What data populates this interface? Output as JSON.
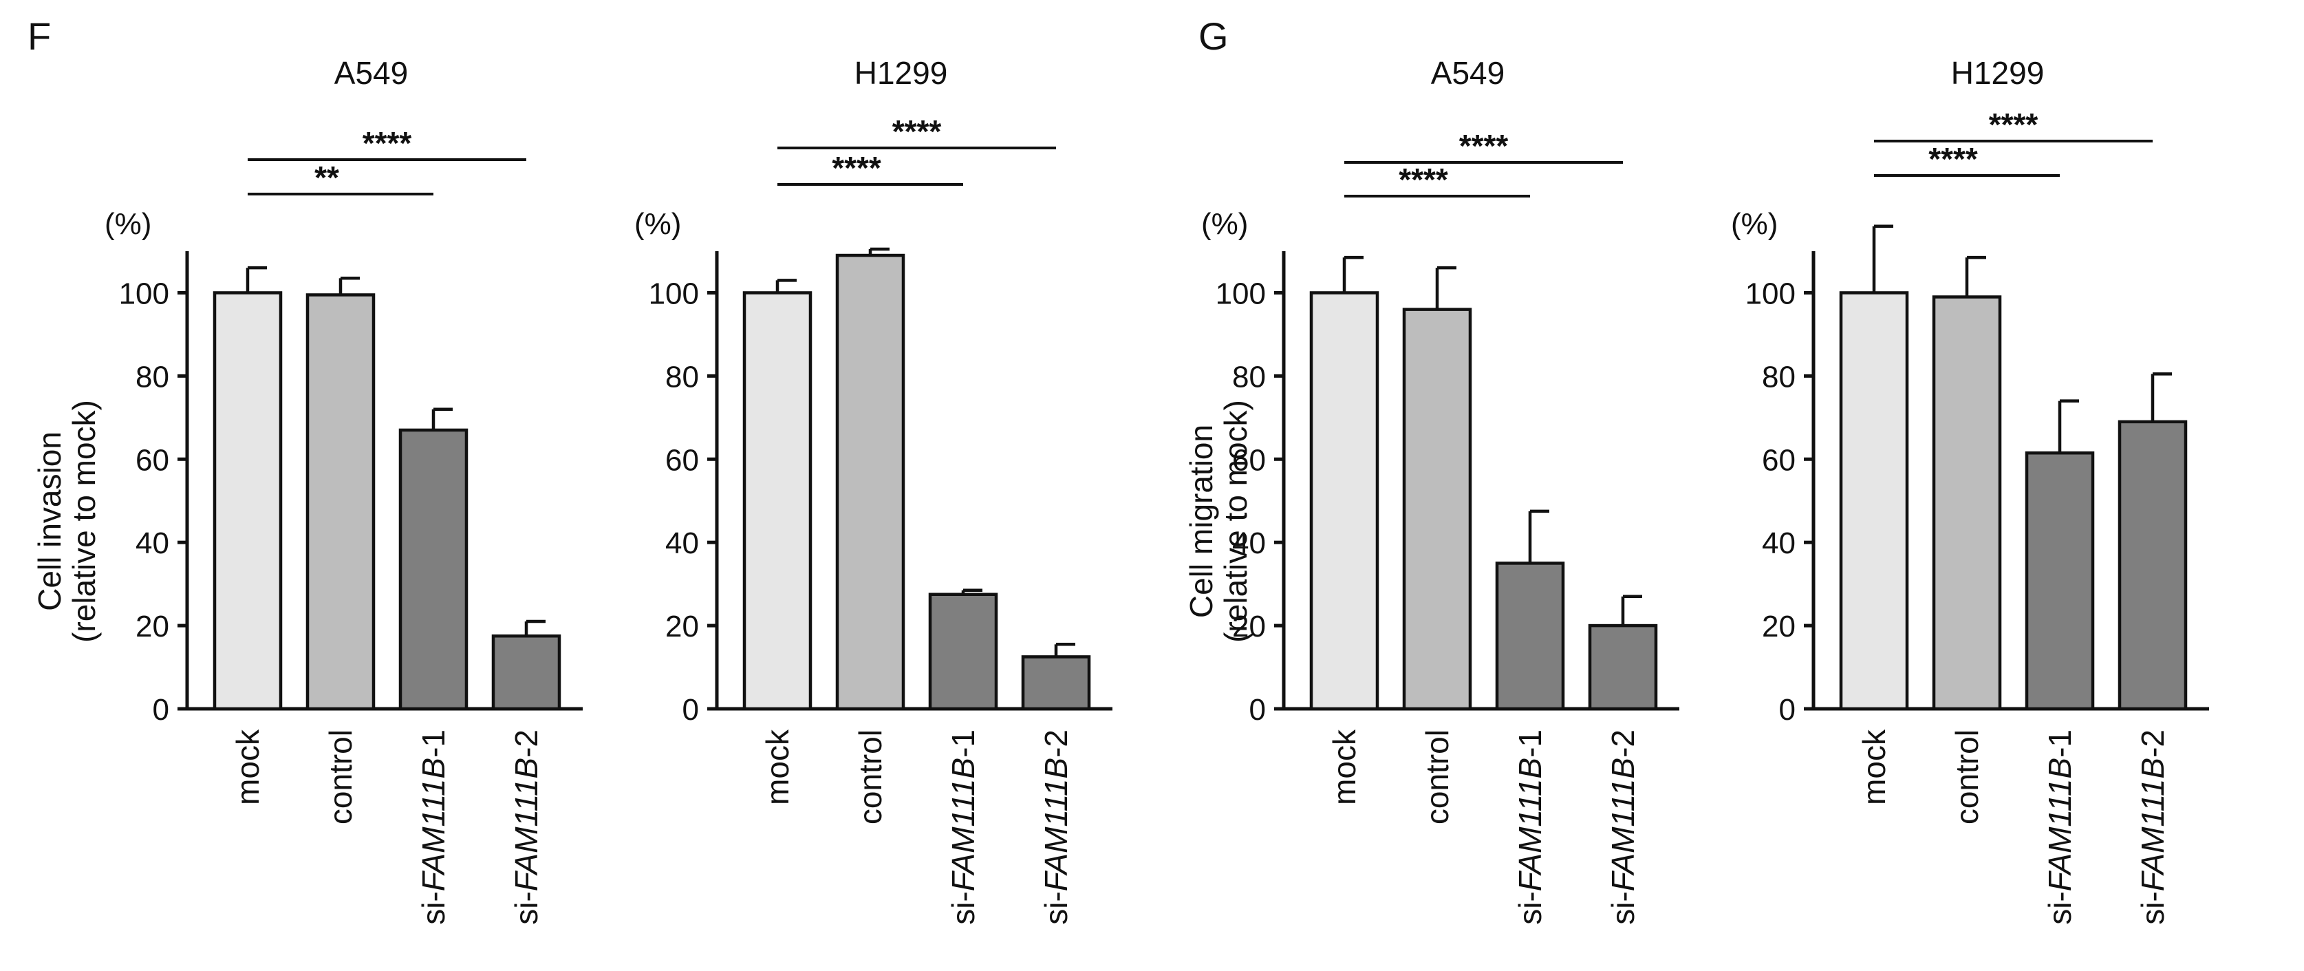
{
  "panels": [
    {
      "letter": "F"
    },
    {
      "letter": "G"
    }
  ],
  "unit_label": "(%)",
  "categories": [
    {
      "prefix": "",
      "italic": "",
      "suffix": "mock"
    },
    {
      "prefix": "",
      "italic": "",
      "suffix": "control"
    },
    {
      "prefix": "si-",
      "italic": "FAM111B",
      "suffix": "-1"
    },
    {
      "prefix": "si-",
      "italic": "FAM111B",
      "suffix": "-2"
    }
  ],
  "bar_colors": [
    "#e6e6e6",
    "#bdbdbd",
    "#7f7f7f",
    "#7f7f7f"
  ],
  "chart_data": [
    {
      "type": "bar",
      "title": "A549",
      "ylabel": [
        "Cell invasion",
        "(relative to mock)"
      ],
      "categories": [
        "mock",
        "control",
        "si-FAM111B-1",
        "si-FAM111B-2"
      ],
      "values": [
        100,
        99.5,
        67,
        17.5
      ],
      "errors": [
        6,
        4,
        5,
        3.5
      ],
      "ylim": [
        0,
        110
      ],
      "yticks": [
        0,
        20,
        40,
        60,
        80,
        100
      ],
      "significance": [
        {
          "from": 0,
          "to": 3,
          "label": "****"
        },
        {
          "from": 0,
          "to": 2,
          "label": "**"
        }
      ]
    },
    {
      "type": "bar",
      "title": "H1299",
      "ylabel": [],
      "categories": [
        "mock",
        "control",
        "si-FAM111B-1",
        "si-FAM111B-2"
      ],
      "values": [
        100,
        109,
        27.5,
        12.5
      ],
      "errors": [
        3,
        1.5,
        1,
        3
      ],
      "ylim": [
        0,
        110
      ],
      "yticks": [
        0,
        20,
        40,
        60,
        80,
        100
      ],
      "significance": [
        {
          "from": 0,
          "to": 3,
          "label": "****"
        },
        {
          "from": 0,
          "to": 2,
          "label": "****"
        }
      ]
    },
    {
      "type": "bar",
      "title": "A549",
      "ylabel": [
        "Cell migration",
        "(relative to mock)"
      ],
      "categories": [
        "mock",
        "control",
        "si-FAM111B-1",
        "si-FAM111B-2"
      ],
      "values": [
        100,
        96,
        35,
        20
      ],
      "errors": [
        8.5,
        10,
        12.5,
        7
      ],
      "ylim": [
        0,
        110
      ],
      "yticks": [
        0,
        20,
        40,
        60,
        80,
        100
      ],
      "significance": [
        {
          "from": 0,
          "to": 3,
          "label": "****"
        },
        {
          "from": 0,
          "to": 2,
          "label": "****"
        }
      ]
    },
    {
      "type": "bar",
      "title": "H1299",
      "ylabel": [],
      "categories": [
        "mock",
        "control",
        "si-FAM111B-1",
        "si-FAM111B-2"
      ],
      "values": [
        100,
        99,
        61.5,
        69
      ],
      "errors": [
        16,
        9.5,
        12.5,
        11.5
      ],
      "ylim": [
        0,
        110
      ],
      "yticks": [
        0,
        20,
        40,
        60,
        80,
        100
      ],
      "significance": [
        {
          "from": 0,
          "to": 3,
          "label": "****"
        },
        {
          "from": 0,
          "to": 2,
          "label": "****"
        }
      ]
    }
  ]
}
